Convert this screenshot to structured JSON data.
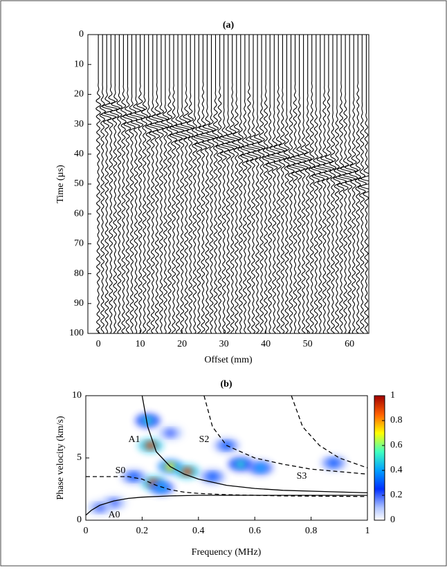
{
  "chart_data": [
    {
      "type": "wiggle",
      "title": "(a)",
      "x_label": "Offset (mm)",
      "y_label": "Time (µs)",
      "x": [
        0,
        1,
        2,
        3,
        4,
        5,
        6,
        7,
        8,
        9,
        10,
        11,
        12,
        13,
        14,
        15,
        16,
        17,
        18,
        19,
        20,
        21,
        22,
        23,
        24,
        25,
        26,
        27,
        28,
        29,
        30,
        31,
        32,
        33,
        34,
        35,
        36,
        37,
        38,
        39,
        40,
        41,
        42,
        43,
        44,
        45,
        46,
        47,
        48,
        49,
        50,
        51,
        52,
        53,
        54,
        55,
        56,
        57,
        58,
        59,
        60,
        61,
        62,
        63,
        64
      ],
      "xlim": [
        -2.5,
        64.6
      ],
      "xticks": [
        0,
        10,
        20,
        30,
        40,
        50,
        60
      ],
      "ylim": [
        0,
        100
      ],
      "yticks": [
        0,
        10,
        20,
        30,
        40,
        50,
        60,
        70,
        80,
        90,
        100
      ],
      "y_inverted": true,
      "color": "#000000"
    },
    {
      "type": "heatmap_dispersion",
      "title": "(b)",
      "x_label": "Frequency (MHz)",
      "y_label": "Phase velocity (km/s)",
      "xlim": [
        0,
        1
      ],
      "xticks": [
        0,
        0.2,
        0.4,
        0.6,
        0.8,
        1
      ],
      "ylim": [
        0,
        10
      ],
      "yticks": [
        0,
        5,
        10
      ],
      "colorbar": {
        "lim": [
          0,
          1
        ],
        "ticks": [
          0,
          0.2,
          0.4,
          0.6,
          0.8,
          1
        ]
      },
      "hotspots": {
        "x": [
          0.23,
          0.24,
          0.3,
          0.36,
          0.22,
          0.55,
          0.62,
          0.5,
          0.88,
          0.1,
          0.05,
          0.3,
          0.17,
          0.45,
          0.27
        ],
        "y": [
          6,
          3,
          4.3,
          3.9,
          8,
          4.5,
          4.2,
          6,
          4.6,
          1.4,
          1.0,
          7,
          3.5,
          3.5,
          2.6
        ],
        "values": [
          0.9,
          0.9,
          0.7,
          0.9,
          0.5,
          0.5,
          0.4,
          0.3,
          0.3,
          0.2,
          0.2,
          0.2,
          0.3,
          0.3,
          0.4
        ]
      },
      "series": [
        {
          "name": "A0",
          "dash": false,
          "x": [
            0,
            0.02,
            0.05,
            0.1,
            0.15,
            0.2,
            0.3,
            0.4,
            0.6,
            1
          ],
          "values": [
            0.4,
            0.8,
            1.2,
            1.55,
            1.75,
            1.85,
            1.95,
            2.0,
            2.0,
            2.0
          ]
        },
        {
          "name": "S0",
          "dash": true,
          "x": [
            0,
            0.15,
            0.2,
            0.25,
            0.3,
            0.35,
            0.4,
            0.5,
            0.7,
            1
          ],
          "values": [
            3.5,
            3.5,
            3.3,
            2.8,
            2.45,
            2.25,
            2.15,
            2.05,
            1.95,
            1.9
          ]
        },
        {
          "name": "A1",
          "dash": false,
          "x": [
            0.2,
            0.22,
            0.25,
            0.3,
            0.35,
            0.4,
            0.5,
            0.6,
            0.7,
            0.85,
            1
          ],
          "values": [
            10,
            7.5,
            5.5,
            4.3,
            3.7,
            3.3,
            2.8,
            2.55,
            2.4,
            2.3,
            2.2
          ]
        },
        {
          "name": "S2",
          "dash": true,
          "x": [
            0.42,
            0.45,
            0.5,
            0.6,
            0.7,
            0.8,
            0.9,
            1
          ],
          "values": [
            10,
            7.5,
            6,
            5,
            4.5,
            4.1,
            3.9,
            3.7
          ]
        },
        {
          "name": "S3",
          "dash": true,
          "x": [
            0.73,
            0.77,
            0.83,
            0.9,
            0.95,
            1
          ],
          "values": [
            10,
            7.5,
            6,
            5,
            4.6,
            4.2
          ]
        }
      ]
    }
  ]
}
